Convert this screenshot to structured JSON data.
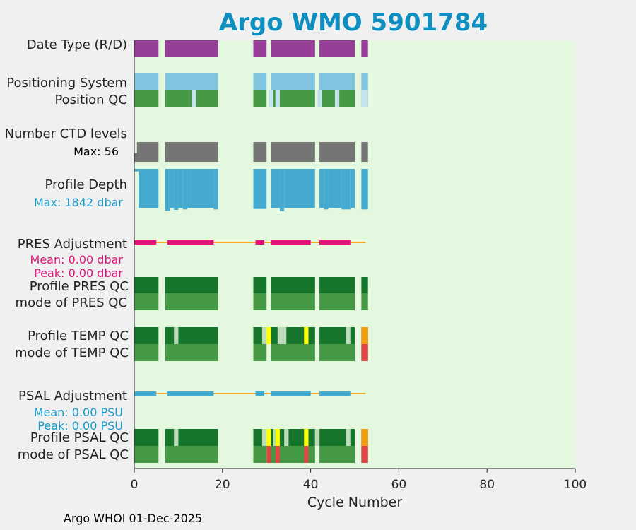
{
  "chart_data": {
    "type": "timeline",
    "title": "Argo WMO 5901784",
    "xlabel": "Cycle Number",
    "xlim": [
      0,
      100
    ],
    "x_ticks": [
      "0",
      "20",
      "40",
      "60",
      "80",
      "100"
    ],
    "footer": "Argo WHOI 01-Dec-2025",
    "row_labels": [
      {
        "text": "Date Type (R/D)",
        "color": "#222222"
      },
      {
        "text": "Positioning System",
        "color": "#222222"
      },
      {
        "text": "Position QC",
        "color": "#222222"
      },
      {
        "text": "Number CTD levels",
        "color": "#222222"
      },
      {
        "text": "Max: 56",
        "color": "#000000"
      },
      {
        "text": "Profile Depth",
        "color": "#222222"
      },
      {
        "text": "Max: 1842 dbar",
        "color": "#1a9ac9"
      },
      {
        "text": "PRES Adjustment",
        "color": "#222222"
      },
      {
        "text": "Mean: 0.00 dbar",
        "color": "#e0137b"
      },
      {
        "text": "Peak: 0.00 dbar",
        "color": "#e0137b"
      },
      {
        "text": "Profile PRES QC",
        "color": "#222222"
      },
      {
        "text": "mode of PRES QC",
        "color": "#222222"
      },
      {
        "text": "Profile TEMP QC",
        "color": "#222222"
      },
      {
        "text": "mode of TEMP QC",
        "color": "#222222"
      },
      {
        "text": "PSAL Adjustment",
        "color": "#222222"
      },
      {
        "text": "Mean: 0.00 PSU",
        "color": "#1a9ac9"
      },
      {
        "text": "Peak: 0.00 PSU",
        "color": "#1a9ac9"
      },
      {
        "text": "Profile PSAL QC",
        "color": "#222222"
      },
      {
        "text": "mode of PSAL QC",
        "color": "#222222"
      }
    ],
    "segment_rows": [
      {
        "name": "date-type",
        "color": "#973e98",
        "segments": [
          [
            0,
            5.5
          ],
          [
            7,
            19
          ],
          [
            27,
            30
          ],
          [
            31,
            41
          ],
          [
            42,
            50
          ],
          [
            51.5,
            53
          ]
        ]
      },
      {
        "name": "positioning-system",
        "color": "#80c4df",
        "segments": [
          [
            0,
            5.5
          ],
          [
            7,
            19
          ],
          [
            27,
            30
          ],
          [
            31,
            41
          ],
          [
            42,
            50
          ],
          [
            51.5,
            53
          ]
        ]
      },
      {
        "name": "position-qc",
        "color": "#459945",
        "segments": [
          [
            0,
            5.5
          ],
          [
            7,
            19
          ],
          [
            27,
            30
          ],
          [
            31,
            41
          ],
          [
            42,
            50
          ],
          [
            51.5,
            53
          ]
        ],
        "overlays": [
          [
            13,
            14,
            "#c5e2ef"
          ],
          [
            30.5,
            31.5,
            "#c5e2ef"
          ],
          [
            32,
            33,
            "#c5e2ef"
          ],
          [
            41.5,
            42.5,
            "#c5e2ef"
          ],
          [
            45.5,
            46.5,
            "#c5e2ef"
          ],
          [
            51.5,
            53,
            "#c5e2ef"
          ]
        ]
      },
      {
        "name": "number-ctd-levels",
        "color": "#757575",
        "segments": [
          [
            0,
            5.5
          ],
          [
            7,
            19
          ],
          [
            27,
            30
          ],
          [
            31,
            41
          ],
          [
            42,
            50
          ],
          [
            51.5,
            53
          ]
        ]
      },
      {
        "name": "pres-qc-profile",
        "color": "#15752a",
        "segments": [
          [
            0,
            5.5
          ],
          [
            7,
            19
          ],
          [
            27,
            30
          ],
          [
            31,
            41
          ],
          [
            42,
            50
          ],
          [
            51.5,
            53
          ]
        ]
      },
      {
        "name": "pres-qc-mode",
        "color": "#459945",
        "segments": [
          [
            0,
            5.5
          ],
          [
            7,
            19
          ],
          [
            27,
            30
          ],
          [
            31,
            41
          ],
          [
            42,
            50
          ],
          [
            51.5,
            53
          ]
        ]
      },
      {
        "name": "temp-qc-profile",
        "color": "#15752a",
        "segments": [
          [
            0,
            5.5
          ],
          [
            7,
            19
          ],
          [
            27,
            30
          ],
          [
            31,
            41
          ],
          [
            42,
            50
          ],
          [
            51.5,
            53
          ]
        ],
        "overlays": [
          [
            9,
            10,
            "#bcdcbc"
          ],
          [
            29,
            30,
            "#bcdcbc"
          ],
          [
            30,
            31,
            "#ffff00"
          ],
          [
            32.5,
            34.5,
            "#bcdcbc"
          ],
          [
            38.5,
            39.5,
            "#ffff00"
          ],
          [
            48,
            49,
            "#bcdcbc"
          ],
          [
            51.5,
            53,
            "#f39c12"
          ]
        ]
      },
      {
        "name": "temp-qc-mode",
        "color": "#459945",
        "segments": [
          [
            0,
            5.5
          ],
          [
            7,
            19
          ],
          [
            27,
            30
          ],
          [
            31,
            41
          ],
          [
            42,
            50
          ],
          [
            51.5,
            53
          ]
        ],
        "overlays": [
          [
            51.5,
            53,
            "#e04848"
          ]
        ]
      },
      {
        "name": "psal-qc-profile",
        "color": "#15752a",
        "segments": [
          [
            0,
            5.5
          ],
          [
            7,
            19
          ],
          [
            27,
            30
          ],
          [
            31,
            41
          ],
          [
            42,
            50
          ],
          [
            51.5,
            53
          ]
        ],
        "overlays": [
          [
            9,
            10,
            "#bcdcbc"
          ],
          [
            29,
            30,
            "#bcdcbc"
          ],
          [
            30,
            31,
            "#ffff00"
          ],
          [
            31.5,
            32,
            "#bcdcbc"
          ],
          [
            32,
            33,
            "#ffff00"
          ],
          [
            34,
            35,
            "#bcdcbc"
          ],
          [
            38.5,
            39.5,
            "#ffff00"
          ],
          [
            41,
            42,
            "#bcdcbc"
          ],
          [
            48,
            49,
            "#bcdcbc"
          ],
          [
            51.5,
            53,
            "#f39c12"
          ]
        ]
      },
      {
        "name": "psal-qc-mode",
        "color": "#459945",
        "segments": [
          [
            0,
            5.5
          ],
          [
            7,
            19
          ],
          [
            27,
            30
          ],
          [
            31,
            41
          ],
          [
            42,
            50
          ],
          [
            51.5,
            53
          ]
        ],
        "overlays": [
          [
            30,
            31,
            "#e04848"
          ],
          [
            32,
            33,
            "#e04848"
          ],
          [
            38.5,
            39.5,
            "#e04848"
          ],
          [
            51.5,
            53,
            "#e04848"
          ]
        ]
      }
    ],
    "profile_depth": {
      "color": "#44aad0",
      "max_dbar": 1842,
      "cycles": [
        [
          0,
          1,
          110
        ],
        [
          1,
          5.5,
          1700
        ],
        [
          7,
          8,
          1820
        ],
        [
          8,
          9,
          1700
        ],
        [
          9,
          10,
          1780
        ],
        [
          10,
          11,
          1700
        ],
        [
          11,
          12,
          1760
        ],
        [
          12,
          18,
          1700
        ],
        [
          18,
          19,
          1760
        ],
        [
          27,
          30,
          1740
        ],
        [
          31,
          33,
          1700
        ],
        [
          33,
          34,
          1842
        ],
        [
          34,
          41,
          1700
        ],
        [
          42,
          43,
          1700
        ],
        [
          43,
          44,
          1760
        ],
        [
          44,
          47,
          1700
        ],
        [
          47,
          49,
          1760
        ],
        [
          49,
          50,
          1700
        ],
        [
          51.5,
          53,
          1760
        ]
      ]
    },
    "adjustment_lines": {
      "line_color": "#f0a830",
      "line_extent": [
        0,
        52.5
      ],
      "pres": {
        "color": "#e0137b",
        "segments": [
          [
            0,
            5
          ],
          [
            7.5,
            18
          ],
          [
            27.5,
            29.5
          ],
          [
            31,
            40
          ],
          [
            42,
            49
          ]
        ]
      },
      "psal": {
        "color": "#44aad0",
        "segments": [
          [
            0,
            5
          ],
          [
            7.5,
            18
          ],
          [
            27.5,
            29.5
          ],
          [
            31,
            40
          ],
          [
            42,
            49
          ]
        ]
      }
    }
  }
}
